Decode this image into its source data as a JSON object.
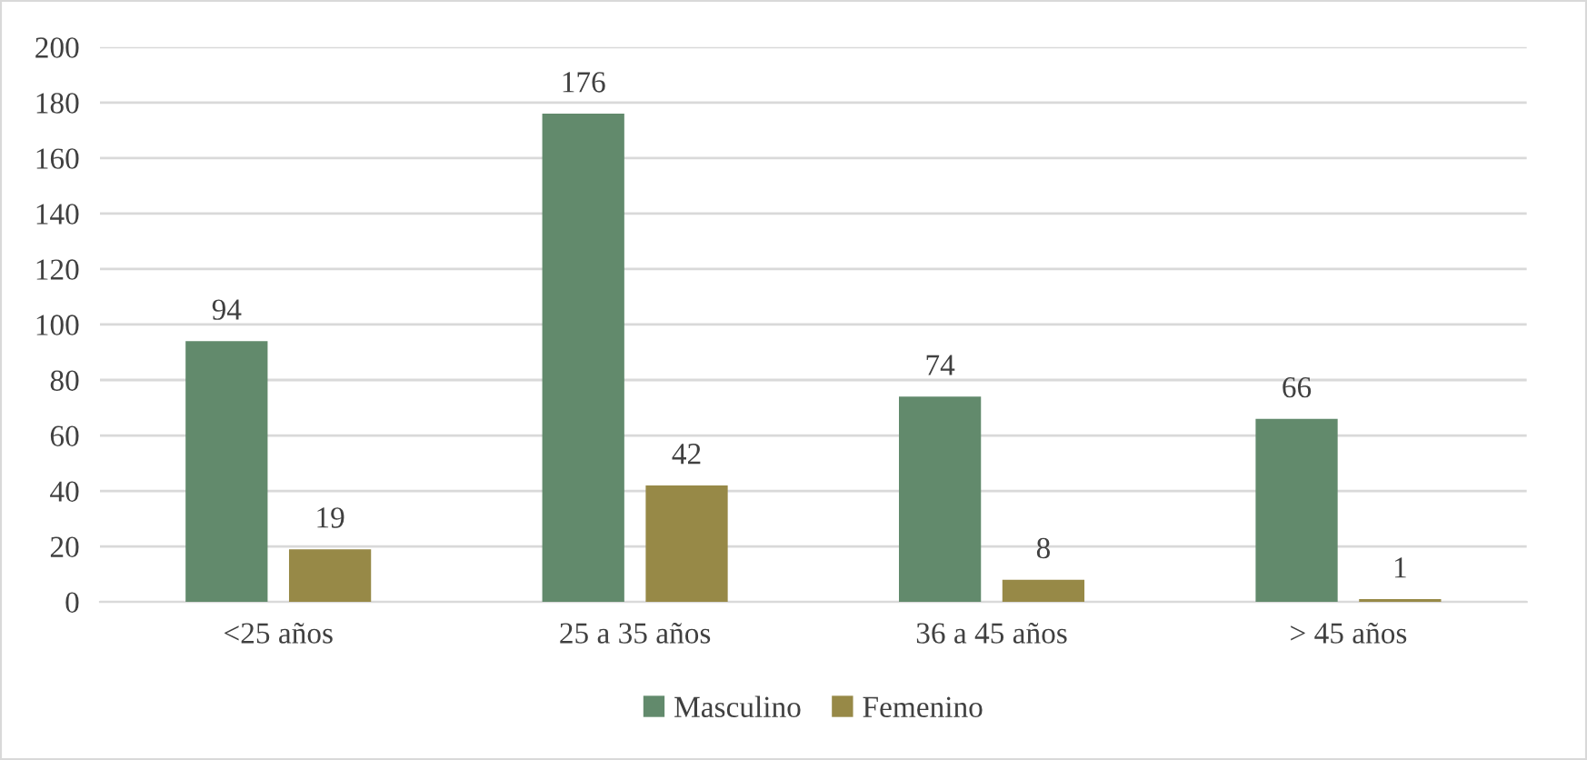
{
  "chart_data": {
    "type": "bar",
    "categories": [
      "<25 años",
      "25 a 35 años",
      "36 a 45 años",
      "> 45 años"
    ],
    "series": [
      {
        "name": "Masculino",
        "color": "#628a6c",
        "values": [
          94,
          176,
          74,
          66
        ]
      },
      {
        "name": "Femenino",
        "color": "#978947",
        "values": [
          19,
          42,
          8,
          1
        ]
      }
    ],
    "ylim": [
      0,
      200
    ],
    "yticks": [
      0,
      20,
      40,
      60,
      80,
      100,
      120,
      140,
      160,
      180,
      200
    ],
    "grid": "y",
    "legend": "bottom",
    "data_labels": true
  }
}
